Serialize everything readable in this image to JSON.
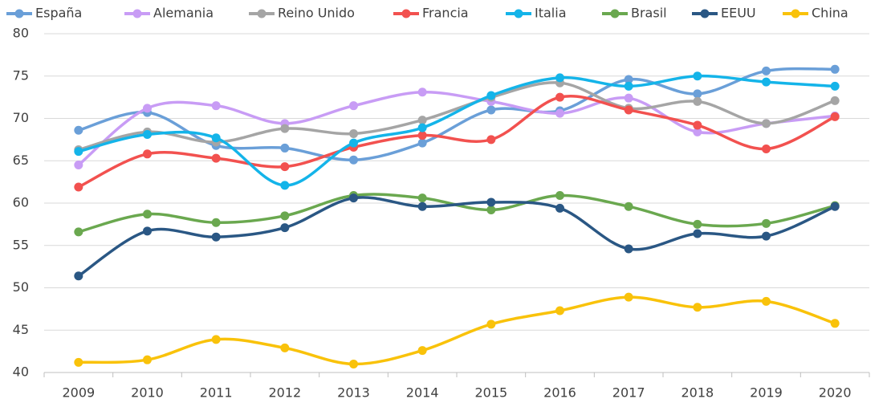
{
  "chart_data": {
    "type": "line",
    "categories": [
      "2009",
      "2010",
      "2011",
      "2012",
      "2013",
      "2014",
      "2015",
      "2016",
      "2017",
      "2018",
      "2019",
      "2020"
    ],
    "ylim": [
      40,
      80
    ],
    "yticks": [
      40,
      45,
      50,
      55,
      60,
      65,
      70,
      75,
      80
    ],
    "grid": true,
    "legend": "top",
    "smooth": true,
    "series": [
      {
        "name": "España",
        "color": "#6a9fd8",
        "values": [
          68.6,
          70.7,
          66.8,
          66.5,
          65.1,
          67.1,
          71.0,
          70.9,
          74.6,
          72.9,
          75.6,
          75.8
        ]
      },
      {
        "name": "Alemania",
        "color": "#c89cf5",
        "values": [
          64.5,
          71.2,
          71.5,
          69.4,
          71.5,
          73.1,
          72.0,
          70.6,
          72.4,
          68.4,
          69.4,
          70.3
        ]
      },
      {
        "name": "Reino Unido",
        "color": "#a5a5a5",
        "values": [
          66.3,
          68.4,
          67.2,
          68.8,
          68.2,
          69.8,
          72.5,
          74.2,
          71.2,
          72.0,
          69.4,
          72.1
        ]
      },
      {
        "name": "Francia",
        "color": "#f2514f",
        "values": [
          61.9,
          65.8,
          65.3,
          64.3,
          66.6,
          68.0,
          67.5,
          72.5,
          71.0,
          69.2,
          66.4,
          70.2
        ]
      },
      {
        "name": "Italia",
        "color": "#14b4e9",
        "values": [
          66.1,
          68.1,
          67.7,
          62.1,
          67.1,
          68.9,
          72.7,
          74.8,
          73.8,
          75.0,
          74.3,
          73.8
        ]
      },
      {
        "name": "Brasil",
        "color": "#6aa84f",
        "values": [
          56.6,
          58.7,
          57.7,
          58.5,
          60.9,
          60.6,
          59.2,
          60.9,
          59.6,
          57.5,
          57.6,
          59.7
        ]
      },
      {
        "name": "EEUU",
        "color": "#2a5784",
        "values": [
          51.4,
          56.7,
          56.0,
          57.1,
          60.6,
          59.6,
          60.1,
          59.4,
          54.6,
          56.4,
          56.1,
          59.6
        ]
      },
      {
        "name": "China",
        "color": "#f9c20a",
        "values": [
          41.2,
          41.5,
          43.9,
          42.9,
          41.0,
          42.6,
          45.7,
          47.3,
          48.9,
          47.7,
          48.4,
          45.8
        ]
      }
    ]
  }
}
